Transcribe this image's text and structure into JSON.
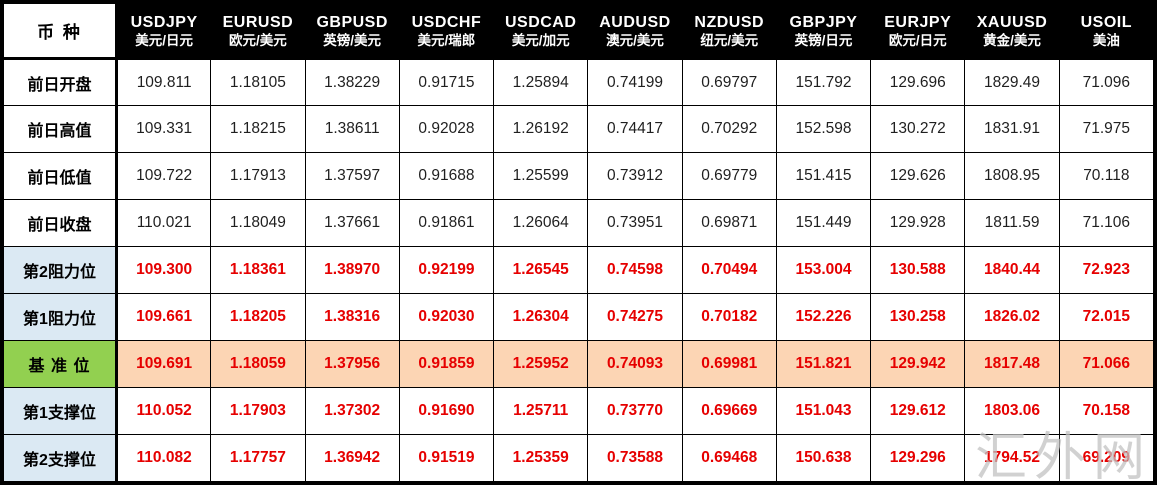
{
  "watermark": "汇外网",
  "colors": {
    "header_bg": "#000000",
    "header_fg": "#ffffff",
    "level_bg": "#dbe9f3",
    "pivot_green": "#92d050",
    "pivot_peach": "#fcd5b4",
    "red": "#e60000",
    "watermark": "#c2c2c2"
  },
  "chart_data": {
    "type": "table",
    "corner_label": "币 种",
    "columns": [
      {
        "symbol": "USDJPY",
        "name": "美元/日元"
      },
      {
        "symbol": "EURUSD",
        "name": "欧元/美元"
      },
      {
        "symbol": "GBPUSD",
        "name": "英镑/美元"
      },
      {
        "symbol": "USDCHF",
        "name": "美元/瑞郎"
      },
      {
        "symbol": "USDCAD",
        "name": "美元/加元"
      },
      {
        "symbol": "AUDUSD",
        "name": "澳元/美元"
      },
      {
        "symbol": "NZDUSD",
        "name": "纽元/美元"
      },
      {
        "symbol": "GBPJPY",
        "name": "英镑/日元"
      },
      {
        "symbol": "EURJPY",
        "name": "欧元/日元"
      },
      {
        "symbol": "XAUUSD",
        "name": "黄金/美元"
      },
      {
        "symbol": "USOIL",
        "name": "美油"
      }
    ],
    "rows": [
      {
        "label": "前日开盘",
        "type": "plain",
        "values": [
          "109.811",
          "1.18105",
          "1.38229",
          "0.91715",
          "1.25894",
          "0.74199",
          "0.69797",
          "151.792",
          "129.696",
          "1829.49",
          "71.096"
        ]
      },
      {
        "label": "前日高值",
        "type": "plain",
        "values": [
          "109.331",
          "1.18215",
          "1.38611",
          "0.92028",
          "1.26192",
          "0.74417",
          "0.70292",
          "152.598",
          "130.272",
          "1831.91",
          "71.975"
        ]
      },
      {
        "label": "前日低值",
        "type": "plain",
        "values": [
          "109.722",
          "1.17913",
          "1.37597",
          "0.91688",
          "1.25599",
          "0.73912",
          "0.69779",
          "151.415",
          "129.626",
          "1808.95",
          "70.118"
        ]
      },
      {
        "label": "前日收盘",
        "type": "plain",
        "values": [
          "110.021",
          "1.18049",
          "1.37661",
          "0.91861",
          "1.26064",
          "0.73951",
          "0.69871",
          "151.449",
          "129.928",
          "1811.59",
          "71.106"
        ]
      },
      {
        "label": "第2阻力位",
        "type": "level",
        "values": [
          "109.300",
          "1.18361",
          "1.38970",
          "0.92199",
          "1.26545",
          "0.74598",
          "0.70494",
          "153.004",
          "130.588",
          "1840.44",
          "72.923"
        ]
      },
      {
        "label": "第1阻力位",
        "type": "level",
        "values": [
          "109.661",
          "1.18205",
          "1.38316",
          "0.92030",
          "1.26304",
          "0.74275",
          "0.70182",
          "152.226",
          "130.258",
          "1826.02",
          "72.015"
        ]
      },
      {
        "label": "基 准 位",
        "type": "pivot",
        "values": [
          "109.691",
          "1.18059",
          "1.37956",
          "0.91859",
          "1.25952",
          "0.74093",
          "0.69981",
          "151.821",
          "129.942",
          "1817.48",
          "71.066"
        ]
      },
      {
        "label": "第1支撑位",
        "type": "level",
        "values": [
          "110.052",
          "1.17903",
          "1.37302",
          "0.91690",
          "1.25711",
          "0.73770",
          "0.69669",
          "151.043",
          "129.612",
          "1803.06",
          "70.158"
        ]
      },
      {
        "label": "第2支撑位",
        "type": "level",
        "values": [
          "110.082",
          "1.17757",
          "1.36942",
          "0.91519",
          "1.25359",
          "0.73588",
          "0.69468",
          "150.638",
          "129.296",
          "1794.52",
          "69.209"
        ]
      }
    ]
  }
}
